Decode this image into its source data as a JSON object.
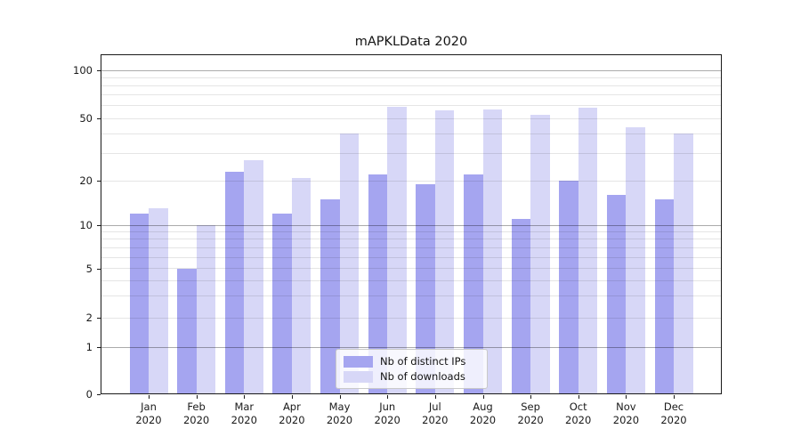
{
  "chart_data": {
    "type": "bar",
    "title": "mAPKLData 2020",
    "categories": [
      "Jan",
      "Feb",
      "Mar",
      "Apr",
      "May",
      "Jun",
      "Jul",
      "Aug",
      "Sep",
      "Oct",
      "Nov",
      "Dec"
    ],
    "year": "2020",
    "series": [
      {
        "name": "Nb of distinct IPs",
        "color": "#a5a5f0",
        "values": [
          12,
          5,
          23,
          12,
          15,
          22,
          19,
          22,
          11,
          20,
          16,
          15
        ]
      },
      {
        "name": "Nb of downloads",
        "color": "#d7d7f7",
        "values": [
          13,
          10,
          27,
          21,
          40,
          59,
          56,
          57,
          53,
          58,
          44,
          40
        ]
      }
    ],
    "y_ticks": [
      100,
      50,
      20,
      10,
      5,
      2,
      1,
      0
    ],
    "yscale": "log-like with 0 baseline",
    "ylim": [
      0,
      125
    ],
    "grid": true,
    "grid_major_at": [
      1,
      10,
      100
    ],
    "legend_position": "lower center"
  }
}
